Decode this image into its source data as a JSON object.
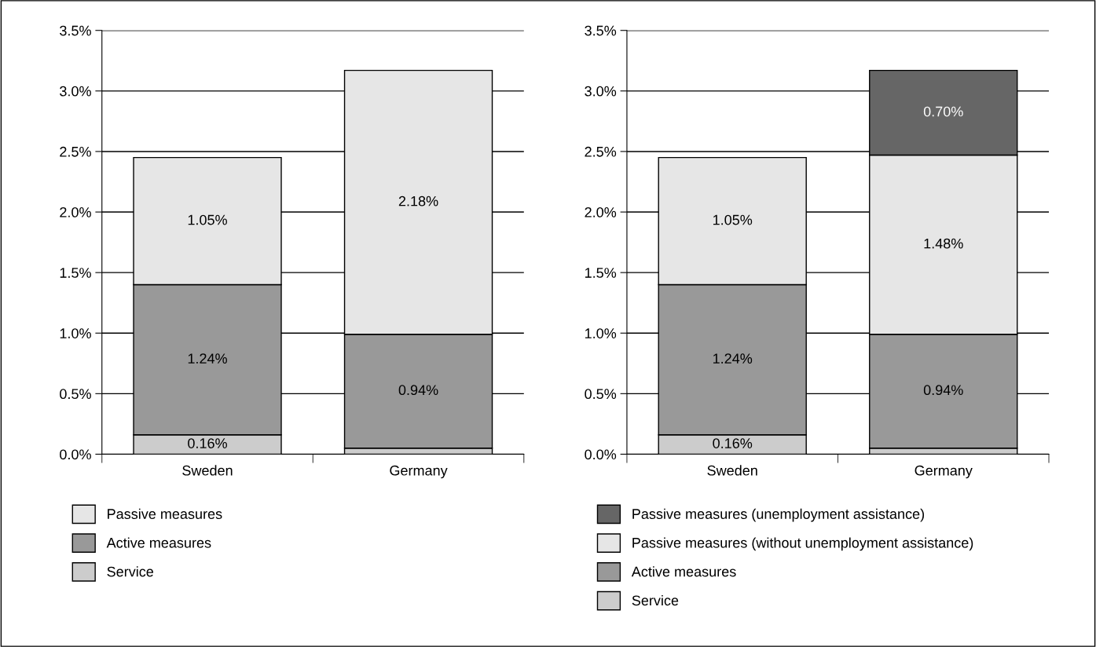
{
  "chart_data": [
    {
      "type": "bar",
      "stacked": true,
      "categories": [
        "Sweden",
        "Germany"
      ],
      "ylim": [
        0,
        3.5
      ],
      "yticks": [
        {
          "value": 0,
          "label": "0.0%"
        },
        {
          "value": 0.5,
          "label": "0.5%"
        },
        {
          "value": 1,
          "label": "1.0%"
        },
        {
          "value": 1.5,
          "label": "1.5%"
        },
        {
          "value": 2,
          "label": "2.0%"
        },
        {
          "value": 2.5,
          "label": "2.5%"
        },
        {
          "value": 3,
          "label": "3.0%"
        },
        {
          "value": 3.5,
          "label": "3.5%"
        }
      ],
      "grid": "y",
      "legend": "bottom",
      "series": [
        {
          "name": "Service",
          "color": "#cccccc",
          "values": [
            0.16,
            0.05
          ],
          "value_labels": [
            "0.16%",
            null
          ]
        },
        {
          "name": "Active measures",
          "color": "#999999",
          "values": [
            1.24,
            0.94
          ],
          "value_labels": [
            "1.24%",
            "0.94%"
          ]
        },
        {
          "name": "Passive measures",
          "color": "#e6e6e6",
          "values": [
            1.05,
            2.18
          ],
          "value_labels": [
            "1.05%",
            "2.18%"
          ]
        }
      ]
    },
    {
      "type": "bar",
      "stacked": true,
      "categories": [
        "Sweden",
        "Germany"
      ],
      "ylim": [
        0,
        3.5
      ],
      "yticks": [
        {
          "value": 0,
          "label": "0.0%"
        },
        {
          "value": 0.5,
          "label": "0.5%"
        },
        {
          "value": 1,
          "label": "1.0%"
        },
        {
          "value": 1.5,
          "label": "1.5%"
        },
        {
          "value": 2,
          "label": "2.0%"
        },
        {
          "value": 2.5,
          "label": "2.5%"
        },
        {
          "value": 3,
          "label": "3.0%"
        },
        {
          "value": 3.5,
          "label": "3.5%"
        }
      ],
      "grid": "y",
      "legend": "bottom",
      "series": [
        {
          "name": "Service",
          "color": "#cccccc",
          "values": [
            0.16,
            0.05
          ],
          "value_labels": [
            "0.16%",
            null
          ]
        },
        {
          "name": "Active measures",
          "color": "#999999",
          "values": [
            1.24,
            0.94
          ],
          "value_labels": [
            "1.24%",
            "0.94%"
          ]
        },
        {
          "name": "Passive measures (without unemployment assistance)",
          "color": "#e6e6e6",
          "values": [
            1.05,
            1.48
          ],
          "value_labels": [
            "1.05%",
            "1.48%"
          ]
        },
        {
          "name": "Passive measures (unemployment assistance)",
          "color": "#666666",
          "values": [
            null,
            0.7
          ],
          "value_labels": [
            null,
            "0.70%"
          ]
        }
      ]
    }
  ]
}
